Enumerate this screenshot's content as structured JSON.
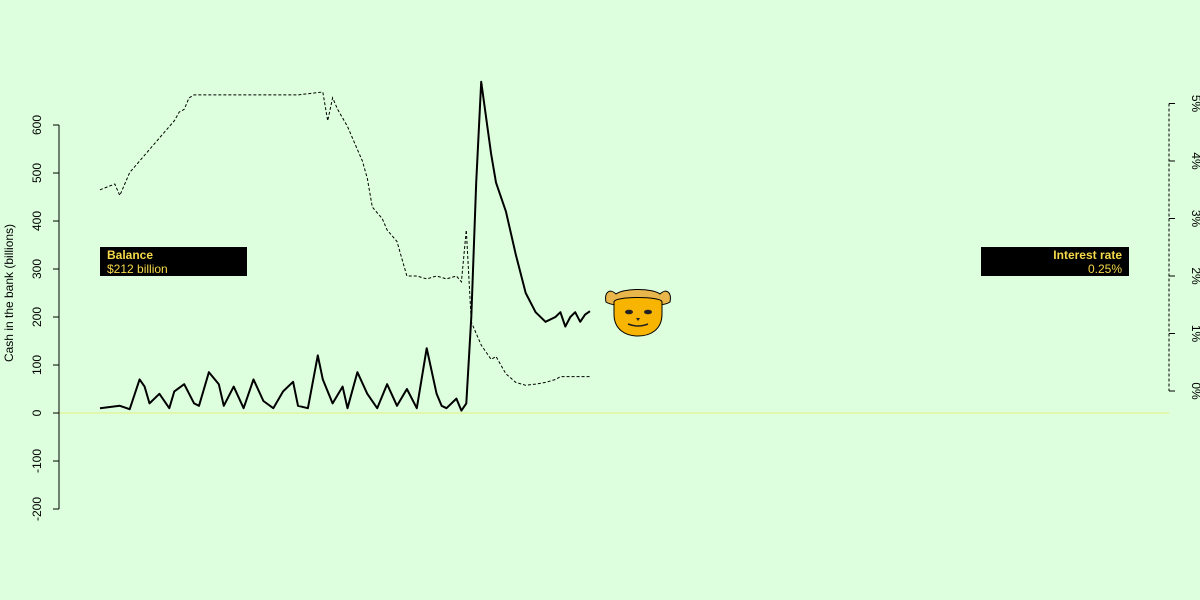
{
  "colors": {
    "background": "#ddffdd",
    "balance_line": "#000000",
    "rate_line": "#000000",
    "zero_line": "#e3ef7a",
    "info_box_bg": "#000000",
    "info_box_text": "#f5d94a",
    "face_fill": "#f7b400",
    "hat_fill": "#e9b64b"
  },
  "balance_box": {
    "heading": "Balance",
    "value": "$212 billion"
  },
  "rate_box": {
    "heading": "Interest rate",
    "value": "0.25%"
  },
  "face_icon": "smiling-face-with-hat-icon",
  "chart_data": {
    "type": "line",
    "ylabel": "Cash in the bank (billions)",
    "ylim": [
      -200,
      600
    ],
    "yticks": [
      -200,
      -100,
      0,
      100,
      200,
      300,
      400,
      500,
      600
    ],
    "ytick_labels": [
      "-200",
      "-100",
      "0",
      "100",
      "200",
      "300",
      "400",
      "500",
      "600"
    ],
    "y2lim": [
      0,
      5
    ],
    "y2ticks": [
      0,
      1,
      2,
      3,
      4,
      5
    ],
    "y2tick_labels": [
      "0%",
      "1%",
      "2%",
      "3%",
      "4%",
      "5%"
    ],
    "x_axis_labels": "none",
    "grid": false,
    "reference_line_y": 0,
    "series": [
      {
        "axis": "left",
        "style": "solid",
        "x": [
          0,
          4,
          6,
          8,
          9,
          10,
          12,
          14,
          15,
          17,
          19,
          20,
          22,
          24,
          25,
          27,
          29,
          31,
          33,
          35,
          37,
          39,
          40,
          42,
          44,
          45,
          47,
          49,
          50,
          52,
          54,
          56,
          58,
          60,
          62,
          64,
          66,
          68,
          69,
          70,
          72,
          73,
          74,
          75,
          76,
          77,
          79,
          80,
          82,
          84,
          86,
          88,
          90,
          92,
          93,
          94,
          95,
          96,
          97,
          98,
          99
        ],
        "values": [
          10,
          15,
          8,
          70,
          55,
          20,
          40,
          10,
          45,
          60,
          20,
          15,
          85,
          60,
          15,
          55,
          10,
          70,
          25,
          10,
          45,
          65,
          15,
          10,
          120,
          70,
          20,
          55,
          10,
          85,
          40,
          10,
          60,
          15,
          50,
          10,
          135,
          40,
          15,
          10,
          30,
          5,
          20,
          200,
          480,
          690,
          540,
          480,
          420,
          330,
          250,
          210,
          190,
          200,
          210,
          180,
          200,
          210,
          190,
          205,
          212
        ]
      },
      {
        "axis": "right",
        "style": "dashed",
        "x": [
          0,
          3,
          4,
          6,
          8,
          10,
          12,
          15,
          16,
          17,
          18,
          19,
          20,
          25,
          30,
          35,
          40,
          45,
          46,
          47,
          48,
          50,
          52,
          53,
          54,
          55,
          56,
          57,
          58,
          60,
          61,
          62,
          64,
          66,
          68,
          70,
          72,
          73,
          74,
          75,
          76,
          77,
          79,
          80,
          82,
          84,
          86,
          88,
          90,
          92,
          93,
          94,
          95,
          96,
          97,
          98,
          99
        ],
        "values": [
          3.5,
          3.6,
          3.4,
          3.8,
          4.0,
          4.2,
          4.4,
          4.7,
          4.85,
          4.9,
          5.1,
          5.15,
          5.15,
          5.15,
          5.15,
          5.15,
          5.15,
          5.2,
          4.7,
          5.1,
          4.9,
          4.6,
          4.2,
          4.0,
          3.7,
          3.2,
          3.1,
          3.0,
          2.8,
          2.6,
          2.3,
          2.0,
          2.0,
          1.95,
          2.0,
          1.95,
          2.0,
          1.9,
          2.8,
          1.2,
          1.0,
          0.8,
          0.55,
          0.6,
          0.3,
          0.15,
          0.1,
          0.12,
          0.15,
          0.2,
          0.25,
          0.25,
          0.25,
          0.25,
          0.25,
          0.25,
          0.25
        ]
      }
    ]
  }
}
